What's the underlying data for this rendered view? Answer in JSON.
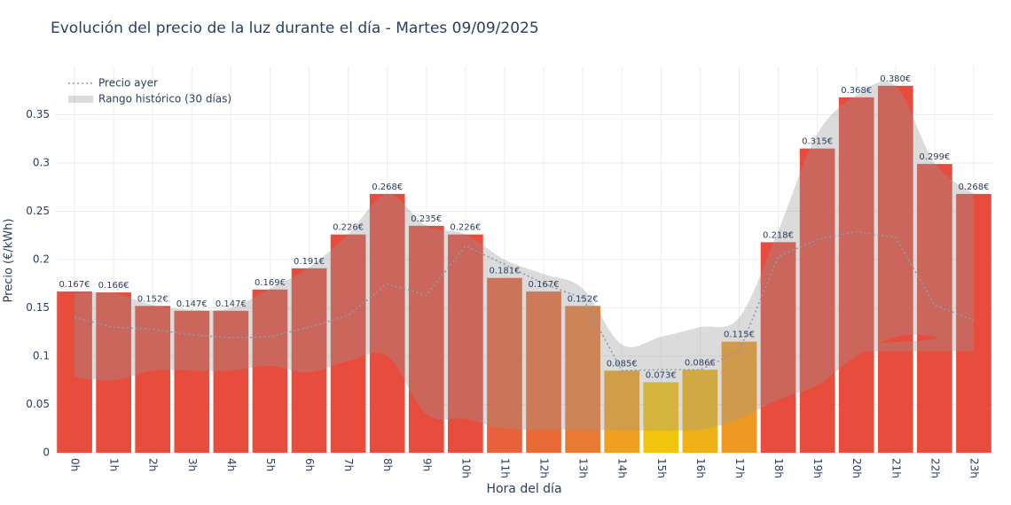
{
  "chart_data": {
    "type": "bar",
    "title": "Evolución del precio de la luz durante el día - Martes 09/09/2025",
    "x_label": "Hora del día",
    "y_label": "Precio (€/kWh)",
    "categories": [
      "0h",
      "1h",
      "2h",
      "3h",
      "4h",
      "5h",
      "6h",
      "7h",
      "8h",
      "9h",
      "10h",
      "11h",
      "12h",
      "13h",
      "14h",
      "15h",
      "16h",
      "17h",
      "18h",
      "19h",
      "20h",
      "21h",
      "22h",
      "23h"
    ],
    "values": [
      0.167,
      0.166,
      0.152,
      0.147,
      0.147,
      0.169,
      0.191,
      0.226,
      0.268,
      0.235,
      0.226,
      0.181,
      0.167,
      0.152,
      0.085,
      0.073,
      0.086,
      0.115,
      0.218,
      0.315,
      0.368,
      0.38,
      0.299,
      0.268
    ],
    "value_labels": [
      "0.167€",
      "0.166€",
      "0.152€",
      "0.147€",
      "0.147€",
      "0.169€",
      "0.191€",
      "0.226€",
      "0.268€",
      "0.235€",
      "0.226€",
      "0.181€",
      "0.167€",
      "0.152€",
      "0.085€",
      "0.073€",
      "0.086€",
      "0.115€",
      "0.218€",
      "0.315€",
      "0.368€",
      "0.380€",
      "0.299€",
      "0.268€"
    ],
    "colors": [
      "#e74c3c",
      "#e74c3c",
      "#e74c3c",
      "#e74c3c",
      "#e74c3c",
      "#e74c3c",
      "#e74c3c",
      "#e74c3c",
      "#e74c3c",
      "#e74c3c",
      "#e74c3c",
      "#e8613a",
      "#e96a37",
      "#ea7a33",
      "#f0a020",
      "#f1c40f",
      "#efb118",
      "#ee9a22",
      "#e74c3c",
      "#e74c3c",
      "#e74c3c",
      "#e74c3c",
      "#e74c3c",
      "#e74c3c"
    ],
    "ylim": [
      0,
      0.4
    ],
    "yticks": [
      0,
      0.05,
      0.1,
      0.15,
      0.2,
      0.25,
      0.3,
      0.35
    ],
    "grid": true,
    "series": [
      {
        "name": "Precio ayer",
        "kind": "line",
        "color": "#8a9bb0",
        "values": [
          0.14,
          0.13,
          0.128,
          0.122,
          0.119,
          0.12,
          0.13,
          0.142,
          0.175,
          0.163,
          0.214,
          0.195,
          0.175,
          0.16,
          0.085,
          0.086,
          0.086,
          0.105,
          0.203,
          0.221,
          0.229,
          0.223,
          0.153,
          0.137
        ]
      },
      {
        "name": "Rango histórico (30 días)",
        "kind": "range",
        "color": "#999999",
        "lower": [
          0.078,
          0.075,
          0.085,
          0.085,
          0.085,
          0.09,
          0.083,
          0.095,
          0.1,
          0.04,
          0.035,
          0.025,
          0.024,
          0.024,
          0.023,
          0.023,
          0.024,
          0.035,
          0.055,
          0.07,
          0.1,
          0.12,
          0.12,
          0.105
        ],
        "upper": [
          0.165,
          0.165,
          0.153,
          0.148,
          0.15,
          0.17,
          0.192,
          0.226,
          0.268,
          0.235,
          0.226,
          0.2,
          0.185,
          0.17,
          0.112,
          0.12,
          0.13,
          0.14,
          0.23,
          0.33,
          0.37,
          0.38,
          0.3,
          0.268
        ]
      }
    ]
  }
}
